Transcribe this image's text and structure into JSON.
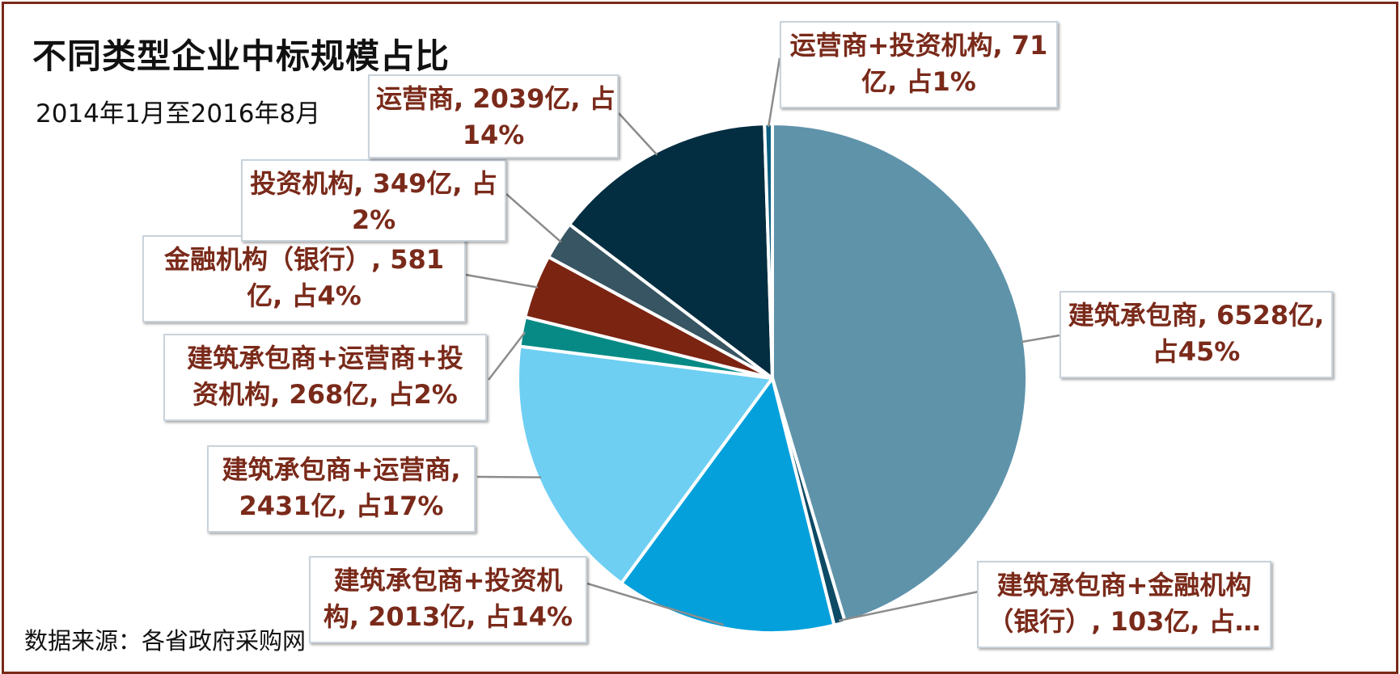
{
  "title": "不同类型企业中标规模占比",
  "subtitle": "2014年1月至2016年8月",
  "source": "数据来源：各省政府采购网",
  "chart_data": {
    "type": "pie",
    "title": "不同类型企业中标规模占比",
    "subtitle": "2014年1月至2016年8月",
    "unit": "亿",
    "slices": [
      {
        "name": "建筑承包商",
        "value": 6528,
        "percent": 45,
        "color": "#5f93aa",
        "label_lines": [
          "建筑承包商, 6528亿,",
          "占45%"
        ]
      },
      {
        "name": "建筑承包商+金融机构（银行）",
        "value": 103,
        "percent": 1,
        "color": "#0d4a66",
        "label_lines": [
          "建筑承包商+金融机构",
          "（银行）, 103亿, 占…"
        ]
      },
      {
        "name": "建筑承包商+投资机构",
        "value": 2013,
        "percent": 14,
        "color": "#03a0db",
        "label_lines": [
          "建筑承包商+投资机",
          "构, 2013亿, 占14%"
        ]
      },
      {
        "name": "建筑承包商+运营商",
        "value": 2431,
        "percent": 17,
        "color": "#6ecff3",
        "label_lines": [
          "建筑承包商+运营商,",
          "2431亿, 占17%"
        ]
      },
      {
        "name": "建筑承包商+运营商+投资机构",
        "value": 268,
        "percent": 2,
        "color": "#078a85",
        "label_lines": [
          "建筑承包商+运营商+投",
          "资机构, 268亿, 占2%"
        ]
      },
      {
        "name": "金融机构（银行）",
        "value": 581,
        "percent": 4,
        "color": "#7b2411",
        "label_lines": [
          "金融机构（银行）, 581",
          "亿, 占4%"
        ]
      },
      {
        "name": "投资机构",
        "value": 349,
        "percent": 2,
        "color": "#375562",
        "label_lines": [
          "投资机构, 349亿, 占",
          "2%"
        ]
      },
      {
        "name": "运营商",
        "value": 2039,
        "percent": 14,
        "color": "#032d40",
        "label_lines": [
          "运营商, 2039亿, 占",
          "14%"
        ]
      },
      {
        "name": "运营商+投资机构",
        "value": 71,
        "percent": 1,
        "color": "#0b5e80",
        "label_lines": [
          "运营商+投资机构, 71",
          "亿, 占1%"
        ]
      }
    ]
  }
}
